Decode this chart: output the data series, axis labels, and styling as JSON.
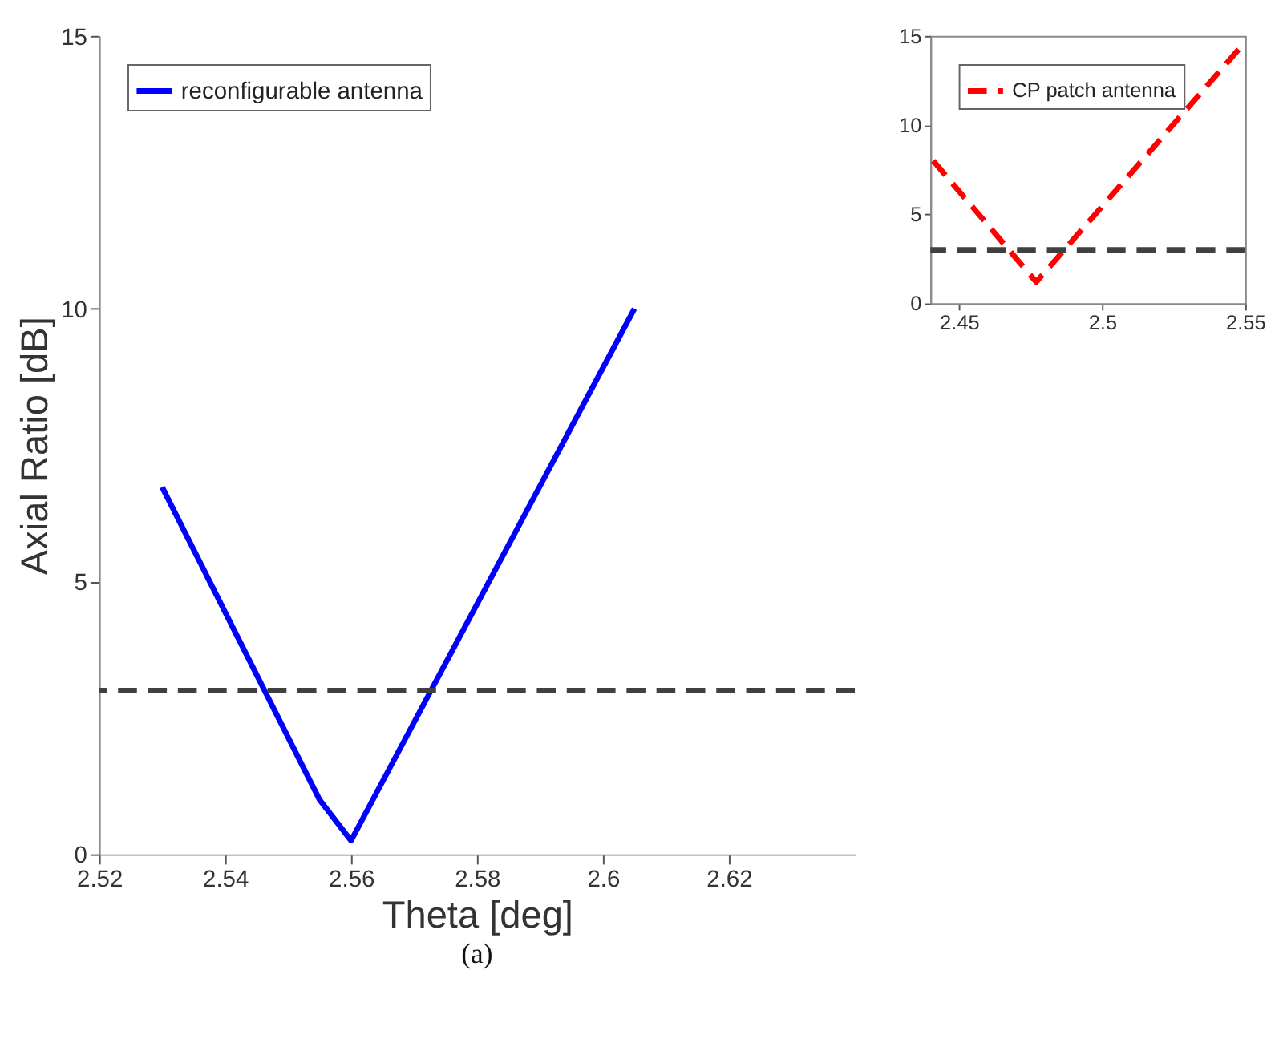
{
  "chart_data": [
    {
      "type": "line",
      "xlabel": "Theta [deg]",
      "ylabel": "Axial Ratio [dB]",
      "xlim": [
        2.52,
        2.64
      ],
      "xticks": [
        2.52,
        2.54,
        2.56,
        2.58,
        2.6,
        2.62
      ],
      "ylim": [
        0,
        15
      ],
      "yticks": [
        0,
        5,
        10,
        15
      ],
      "grid": false,
      "legend": "top left",
      "series": [
        {
          "name": "reconfigurable antenna",
          "color": "#0000ff",
          "line_style": "solid",
          "x": [
            2.53,
            2.555,
            2.56,
            2.605
          ],
          "values": [
            6.73,
            1.0,
            0.25,
            10.0
          ]
        }
      ],
      "ref_lines": [
        {
          "axis": "y",
          "value": 3,
          "color": "#404040",
          "line_style": "dashed"
        }
      ],
      "annotations": [
        "(a)"
      ]
    },
    {
      "type": "line",
      "xlim": [
        2.44,
        2.55
      ],
      "xticks": [
        2.45,
        2.5,
        2.55
      ],
      "ylim": [
        0,
        15
      ],
      "yticks": [
        0,
        5,
        10,
        15
      ],
      "grid": false,
      "legend": "top left",
      "series": [
        {
          "name": "CP patch antenna",
          "color": "#ff0000",
          "line_style": "dashed",
          "x": [
            2.441,
            2.477,
            2.548
          ],
          "values": [
            8.0,
            1.2,
            14.3
          ]
        }
      ],
      "ref_lines": [
        {
          "axis": "y",
          "value": 3,
          "color": "#404040",
          "line_style": "dashed"
        }
      ]
    }
  ]
}
